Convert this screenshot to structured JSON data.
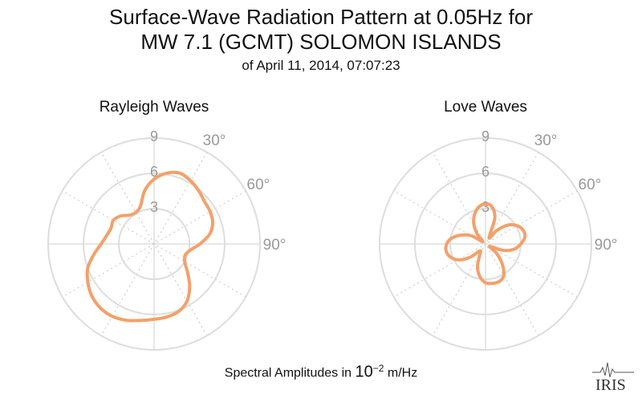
{
  "title_line1": "Surface-Wave Radiation Pattern at 0.05Hz for",
  "title_line2": "MW 7.1 (GCMT) SOLOMON ISLANDS",
  "subtitle": "of April 11, 2014, 07:07:23",
  "footer": {
    "prefix": "Spectral Amplitudes in ",
    "base": "10",
    "exponent": "−2",
    "suffix": " m/Hz"
  },
  "logo_text": "IRIS",
  "colors": {
    "curve": "#f4a06a",
    "grid": "#dddddd",
    "grid_dotted": "#cccccc",
    "tick_text": "#9a9a9a"
  },
  "chart_data": [
    {
      "type": "polar-line",
      "title": "Rayleigh Waves",
      "r_ticks": [
        "3",
        "6",
        "9"
      ],
      "r_max": 9,
      "angle_ticks": [
        "30°",
        "60°",
        "90°"
      ],
      "theta_deg": [
        0,
        10,
        20,
        30,
        40,
        50,
        60,
        70,
        80,
        90,
        100,
        110,
        120,
        130,
        140,
        150,
        160,
        170,
        180,
        190,
        200,
        210,
        220,
        230,
        240,
        250,
        260,
        270,
        280,
        290,
        300,
        310,
        320,
        330,
        340,
        350
      ],
      "r": [
        5.5,
        6.1,
        6.4,
        6.2,
        5.9,
        5.6,
        5.5,
        5.3,
        4.8,
        3.9,
        3.1,
        2.8,
        3.0,
        3.7,
        4.7,
        5.6,
        6.1,
        6.3,
        6.4,
        6.6,
        6.9,
        7.1,
        7.1,
        6.9,
        6.5,
        6.0,
        5.2,
        4.5,
        4.1,
        3.9,
        4.0,
        3.7,
        3.2,
        3.1,
        3.4,
        4.6
      ]
    },
    {
      "type": "polar-line",
      "title": "Love Waves",
      "r_ticks": [
        "3",
        "6",
        "9"
      ],
      "r_max": 9,
      "angle_ticks": [
        "30°",
        "60°",
        "90°"
      ],
      "theta_deg": [
        0,
        10,
        20,
        30,
        40,
        50,
        60,
        70,
        80,
        90,
        100,
        110,
        120,
        130,
        140,
        150,
        160,
        170,
        180,
        190,
        200,
        210,
        220,
        230,
        240,
        250,
        260,
        270,
        280,
        290,
        300,
        310,
        320,
        330,
        340,
        350
      ],
      "r": [
        3.4,
        3.2,
        2.3,
        0.6,
        1.5,
        2.5,
        3.1,
        3.4,
        3.4,
        3.0,
        2.5,
        1.6,
        0.4,
        1.2,
        2.2,
        3.1,
        3.4,
        3.4,
        3.3,
        2.8,
        2.0,
        0.9,
        0.8,
        1.8,
        2.7,
        3.2,
        3.4,
        3.3,
        2.9,
        2.2,
        1.4,
        0.3,
        1.1,
        2.0,
        2.7,
        3.2
      ]
    }
  ]
}
